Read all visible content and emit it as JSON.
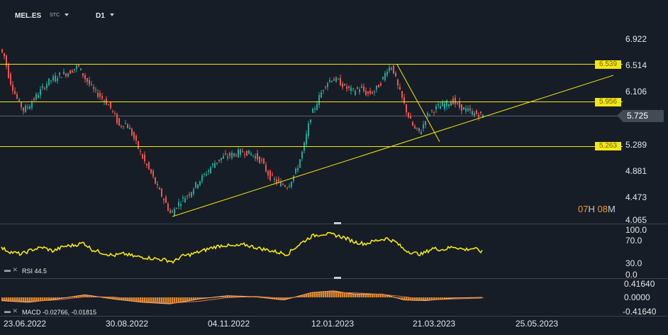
{
  "header": {
    "symbol": "MEL.ES",
    "exchange": "STC",
    "timeframe": "D1"
  },
  "price_axis": {
    "labels": [
      "6.922",
      "6.514",
      "6.106",
      "5.725",
      "5.289",
      "4.881",
      "4.473",
      "4.065"
    ]
  },
  "current_price": "5.725",
  "levels": [
    {
      "label": "6.539",
      "value": 6.539
    },
    {
      "label": "5.956",
      "value": 5.956
    },
    {
      "label": "5.263",
      "value": 5.263
    }
  ],
  "countdown": {
    "hours": "07",
    "h_unit": "H",
    "minutes": "08",
    "m_unit": "M"
  },
  "rsi": {
    "label": "RSI 44.5",
    "axis": [
      "100.0",
      "70.0",
      "30.0",
      "0.0"
    ]
  },
  "macd": {
    "label": "MACD -0.02766, -0.01815",
    "axis": [
      "0.41640",
      "0.0000",
      "-0.41640"
    ]
  },
  "time_axis": [
    "23.06.2022",
    "30.08.2022",
    "04.11.2022",
    "12.01.2023",
    "21.03.2023",
    "25.05.2023"
  ],
  "colors": {
    "background": "#161d26",
    "up_candle": "#26a69a",
    "down_candle": "#ef5350",
    "drawing": "#f5e60f",
    "rsi_line": "#f5e60f",
    "macd_hist": "#f0962d",
    "macd_signal": "#e07a4a"
  },
  "chart_data": {
    "type": "candlestick",
    "price_anchors": [
      [
        0,
        6.8
      ],
      [
        8,
        6.65
      ],
      [
        15,
        6.3
      ],
      [
        25,
        6.0
      ],
      [
        35,
        5.8
      ],
      [
        45,
        5.9
      ],
      [
        55,
        6.05
      ],
      [
        70,
        6.25
      ],
      [
        85,
        6.35
      ],
      [
        100,
        6.4
      ],
      [
        112,
        6.5
      ],
      [
        122,
        6.3
      ],
      [
        135,
        6.1
      ],
      [
        150,
        5.95
      ],
      [
        160,
        5.8
      ],
      [
        170,
        5.55
      ],
      [
        178,
        5.6
      ],
      [
        185,
        5.5
      ],
      [
        195,
        5.25
      ],
      [
        205,
        5.0
      ],
      [
        215,
        4.8
      ],
      [
        225,
        4.55
      ],
      [
        235,
        4.35
      ],
      [
        243,
        4.15
      ],
      [
        250,
        4.28
      ],
      [
        260,
        4.4
      ],
      [
        270,
        4.5
      ],
      [
        280,
        4.65
      ],
      [
        292,
        4.8
      ],
      [
        303,
        4.95
      ],
      [
        315,
        5.05
      ],
      [
        330,
        5.1
      ],
      [
        345,
        5.15
      ],
      [
        358,
        5.1
      ],
      [
        370,
        5.0
      ],
      [
        382,
        4.75
      ],
      [
        395,
        4.65
      ],
      [
        408,
        4.6
      ],
      [
        420,
        4.85
      ],
      [
        430,
        5.2
      ],
      [
        440,
        5.7
      ],
      [
        450,
        5.95
      ],
      [
        460,
        6.2
      ],
      [
        470,
        6.3
      ],
      [
        480,
        6.25
      ],
      [
        490,
        6.15
      ],
      [
        500,
        6.1
      ],
      [
        510,
        6.15
      ],
      [
        520,
        6.05
      ],
      [
        530,
        6.1
      ],
      [
        540,
        6.25
      ],
      [
        548,
        6.45
      ],
      [
        555,
        6.5
      ],
      [
        562,
        6.2
      ],
      [
        570,
        5.95
      ],
      [
        578,
        5.7
      ],
      [
        586,
        5.5
      ],
      [
        595,
        5.45
      ],
      [
        603,
        5.7
      ],
      [
        612,
        5.8
      ],
      [
        620,
        5.85
      ],
      [
        630,
        5.9
      ],
      [
        640,
        5.95
      ],
      [
        650,
        5.85
      ],
      [
        660,
        5.8
      ],
      [
        670,
        5.75
      ],
      [
        680,
        5.72
      ]
    ],
    "rsi_anchors": [
      [
        0,
        60
      ],
      [
        15,
        50
      ],
      [
        30,
        45
      ],
      [
        45,
        55
      ],
      [
        60,
        60
      ],
      [
        75,
        52
      ],
      [
        90,
        62
      ],
      [
        105,
        65
      ],
      [
        118,
        70
      ],
      [
        130,
        55
      ],
      [
        145,
        48
      ],
      [
        160,
        42
      ],
      [
        175,
        46
      ],
      [
        190,
        40
      ],
      [
        205,
        38
      ],
      [
        220,
        35
      ],
      [
        235,
        32
      ],
      [
        245,
        28
      ],
      [
        255,
        40
      ],
      [
        270,
        45
      ],
      [
        285,
        52
      ],
      [
        300,
        60
      ],
      [
        315,
        65
      ],
      [
        330,
        62
      ],
      [
        345,
        66
      ],
      [
        360,
        60
      ],
      [
        375,
        55
      ],
      [
        390,
        50
      ],
      [
        405,
        45
      ],
      [
        415,
        58
      ],
      [
        425,
        70
      ],
      [
        440,
        85
      ],
      [
        455,
        90
      ],
      [
        470,
        88
      ],
      [
        485,
        82
      ],
      [
        500,
        72
      ],
      [
        515,
        68
      ],
      [
        530,
        75
      ],
      [
        545,
        80
      ],
      [
        558,
        72
      ],
      [
        570,
        55
      ],
      [
        582,
        48
      ],
      [
        595,
        45
      ],
      [
        610,
        58
      ],
      [
        625,
        55
      ],
      [
        640,
        62
      ],
      [
        655,
        55
      ],
      [
        668,
        58
      ],
      [
        680,
        50
      ]
    ],
    "trendlines": [
      {
        "from": [
          243,
          4.12
        ],
        "to": [
          865,
          6.35
        ]
      },
      {
        "from": [
          560,
          6.52
        ],
        "to": [
          620,
          5.3
        ]
      }
    ],
    "macd_anchors": [
      [
        0,
        -0.1
      ],
      [
        40,
        -0.15
      ],
      [
        80,
        -0.05
      ],
      [
        120,
        0.08
      ],
      [
        160,
        -0.05
      ],
      [
        200,
        -0.15
      ],
      [
        240,
        -0.2
      ],
      [
        280,
        -0.05
      ],
      [
        320,
        0.05
      ],
      [
        360,
        0.02
      ],
      [
        400,
        -0.08
      ],
      [
        440,
        0.15
      ],
      [
        470,
        0.2
      ],
      [
        500,
        0.1
      ],
      [
        540,
        0.1
      ],
      [
        570,
        -0.08
      ],
      [
        600,
        -0.1
      ],
      [
        640,
        -0.02
      ],
      [
        680,
        0.0
      ]
    ],
    "macd_signal_anchors": [
      [
        0,
        -0.06
      ],
      [
        40,
        -0.12
      ],
      [
        80,
        -0.08
      ],
      [
        120,
        0.02
      ],
      [
        160,
        0.01
      ],
      [
        200,
        -0.1
      ],
      [
        240,
        -0.18
      ],
      [
        280,
        -0.12
      ],
      [
        320,
        -0.01
      ],
      [
        360,
        0.03
      ],
      [
        400,
        -0.03
      ],
      [
        440,
        0.06
      ],
      [
        470,
        0.15
      ],
      [
        500,
        0.14
      ],
      [
        540,
        0.09
      ],
      [
        570,
        0.02
      ],
      [
        600,
        -0.08
      ],
      [
        640,
        -0.05
      ],
      [
        680,
        -0.02
      ]
    ]
  }
}
